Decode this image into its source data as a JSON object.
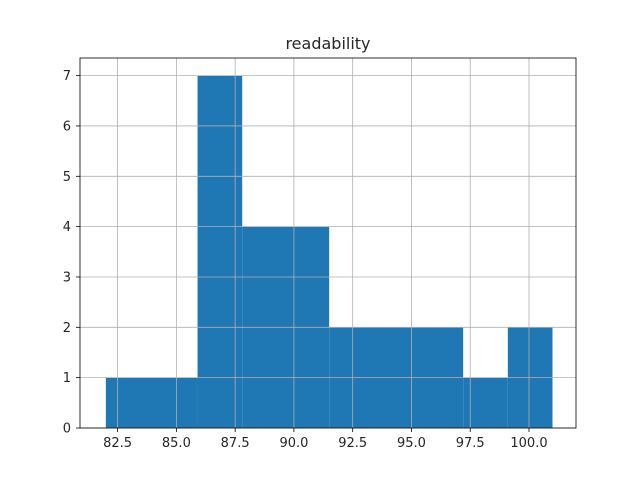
{
  "chart_data": {
    "type": "bar",
    "title": "readability",
    "xlabel": "",
    "ylabel": "",
    "bins": [
      {
        "x0": 82.0,
        "x1": 85.9,
        "count": 1
      },
      {
        "x0": 85.9,
        "x1": 87.8,
        "count": 7
      },
      {
        "x0": 87.8,
        "x1": 91.5,
        "count": 4
      },
      {
        "x0": 91.5,
        "x1": 97.2,
        "count": 2
      },
      {
        "x0": 97.2,
        "x1": 99.1,
        "count": 1
      },
      {
        "x0": 99.1,
        "x1": 101.0,
        "count": 2
      }
    ],
    "xlim": [
      80.9,
      102.0
    ],
    "ylim": [
      0,
      7.35
    ],
    "xticks": [
      "82.5",
      "85.0",
      "87.5",
      "90.0",
      "92.5",
      "95.0",
      "97.5",
      "100.0"
    ],
    "yticks": [
      "0",
      "1",
      "2",
      "3",
      "4",
      "5",
      "6",
      "7"
    ],
    "grid": true,
    "bar_color": "#1f77b4",
    "grid_color": "#b0b0b0"
  }
}
